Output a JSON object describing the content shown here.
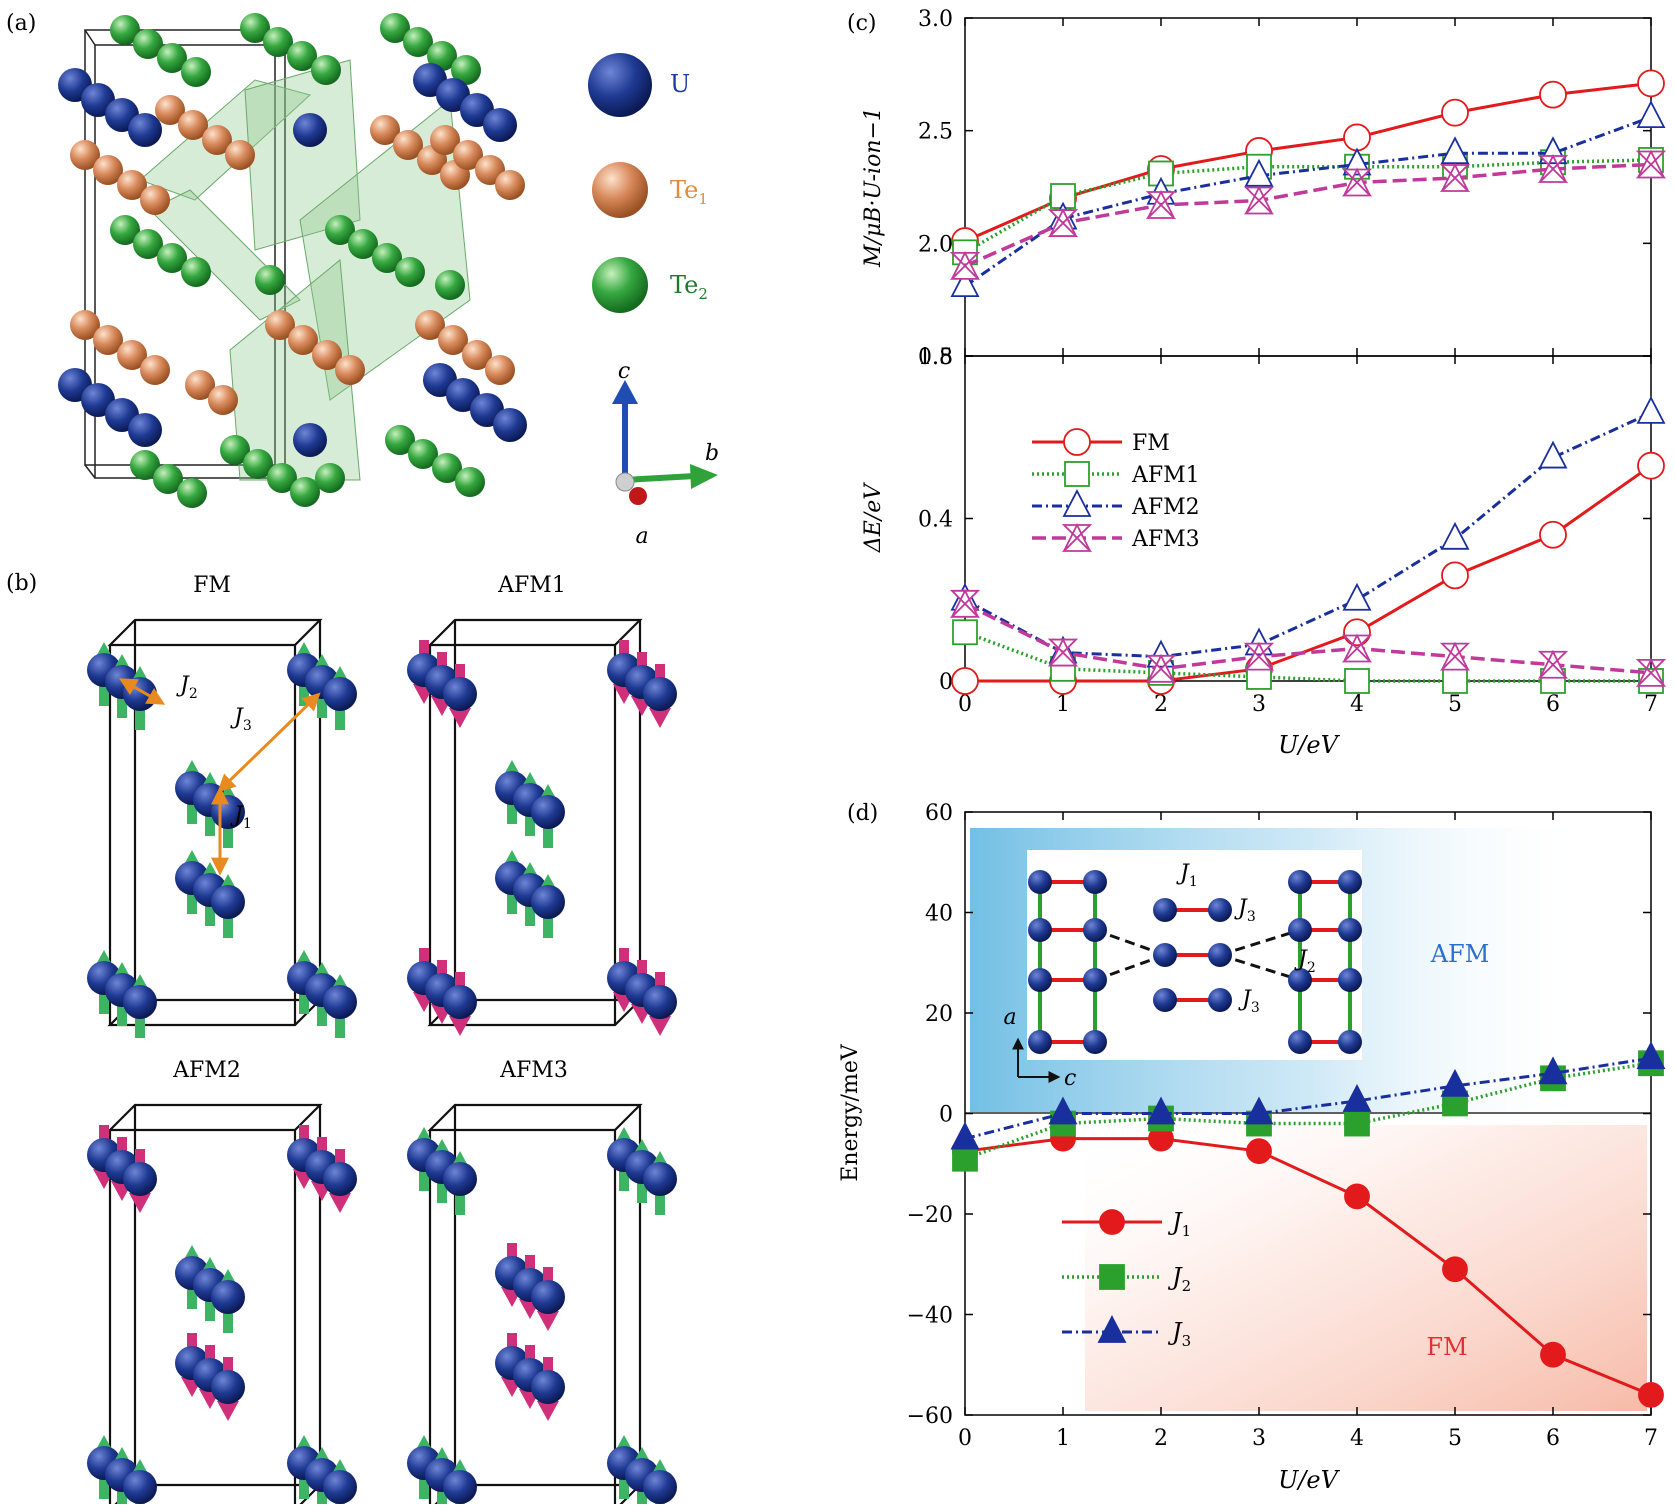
{
  "panels": {
    "a_label": "(a)",
    "b_label": "(b)",
    "c_label": "(c)",
    "d_label": "(d)"
  },
  "structure_legend": [
    {
      "text": "U",
      "sub": "",
      "color": "#1f3a93",
      "text_color": "#1c3aa0"
    },
    {
      "text": "Te",
      "sub": "1",
      "color": "#d4835a",
      "text_color": "#e08a3e"
    },
    {
      "text": "Te",
      "sub": "2",
      "color": "#2fa33a",
      "text_color": "#1d7a2a"
    }
  ],
  "axes_labels": {
    "a": "a",
    "b": "b",
    "c": "c"
  },
  "spin_configs": [
    "FM",
    "AFM1",
    "AFM2",
    "AFM3"
  ],
  "couplings": {
    "j1": "J",
    "j1_sub": "1",
    "j2": "J",
    "j2_sub": "2",
    "j3": "J",
    "j3_sub": "3"
  },
  "inset_d": {
    "a": "a",
    "c": "c"
  },
  "colors": {
    "fm": "#e31a1c",
    "afm1": "#2ca02c",
    "afm2": "#1a2f9e",
    "afm3": "#c0399b",
    "uranium": "#1f3a93",
    "te1": "#d4835a",
    "te2": "#2fa33a",
    "spin_up": "#3cb464",
    "spin_down": "#d0307a"
  },
  "chart_data": [
    {
      "id": "c_top",
      "type": "line",
      "x": [
        0,
        1,
        2,
        3,
        4,
        5,
        6,
        7
      ],
      "xlim": [
        0,
        7
      ],
      "ylim": [
        1.5,
        3.0
      ],
      "yticks": [
        "1.5",
        "2.0",
        "2.5",
        "3.0"
      ],
      "ylabel": "M/μB·U-ion−1",
      "series": [
        {
          "name": "FM",
          "values": [
            2.01,
            2.2,
            2.33,
            2.41,
            2.47,
            2.58,
            2.66,
            2.71
          ]
        },
        {
          "name": "AFM1",
          "values": [
            1.96,
            2.21,
            2.31,
            2.34,
            2.34,
            2.34,
            2.36,
            2.37
          ]
        },
        {
          "name": "AFM2",
          "values": [
            1.81,
            2.11,
            2.22,
            2.3,
            2.35,
            2.4,
            2.4,
            2.56
          ]
        },
        {
          "name": "AFM3",
          "values": [
            1.9,
            2.09,
            2.17,
            2.19,
            2.27,
            2.29,
            2.33,
            2.35
          ]
        }
      ]
    },
    {
      "id": "c_bottom",
      "type": "line",
      "x": [
        0,
        1,
        2,
        3,
        4,
        5,
        6,
        7
      ],
      "xlim": [
        0,
        7
      ],
      "ylim": [
        0,
        0.8
      ],
      "xticks": [
        "0",
        "1",
        "2",
        "3",
        "4",
        "5",
        "6",
        "7"
      ],
      "yticks": [
        "0",
        "0.4",
        "0.8"
      ],
      "xlabel": "U/eV",
      "ylabel": "ΔE/eV",
      "legend": "upper-left",
      "series": [
        {
          "name": "FM",
          "values": [
            0.0,
            0.0,
            0.0,
            0.03,
            0.12,
            0.26,
            0.36,
            0.53
          ]
        },
        {
          "name": "AFM1",
          "values": [
            0.12,
            0.03,
            0.02,
            0.01,
            0.0,
            0.0,
            0.0,
            0.0
          ]
        },
        {
          "name": "AFM2",
          "values": [
            0.2,
            0.07,
            0.06,
            0.09,
            0.2,
            0.35,
            0.55,
            0.66
          ]
        },
        {
          "name": "AFM3",
          "values": [
            0.19,
            0.07,
            0.03,
            0.06,
            0.08,
            0.06,
            0.04,
            0.02
          ]
        }
      ]
    },
    {
      "id": "d",
      "type": "line",
      "x": [
        0,
        1,
        2,
        3,
        4,
        5,
        6,
        7
      ],
      "xlim": [
        0,
        7
      ],
      "ylim": [
        -60,
        60
      ],
      "xticks": [
        "0",
        "1",
        "2",
        "3",
        "4",
        "5",
        "6",
        "7"
      ],
      "yticks": [
        "−60",
        "−40",
        "−20",
        "0",
        "20",
        "40",
        "60"
      ],
      "xlabel": "U/eV",
      "ylabel": "Energy/meV",
      "legend": "lower-left",
      "regions": [
        "AFM",
        "FM"
      ],
      "series": [
        {
          "name": "J1",
          "values": [
            -7.5,
            -5,
            -5,
            -7.5,
            -16.5,
            -31,
            -48,
            -56
          ]
        },
        {
          "name": "J2",
          "values": [
            -9,
            -2,
            -1,
            -2,
            -2,
            2,
            7,
            10
          ]
        },
        {
          "name": "J3",
          "values": [
            -5,
            0,
            0,
            0,
            2.5,
            5.5,
            8,
            11
          ]
        }
      ]
    }
  ]
}
